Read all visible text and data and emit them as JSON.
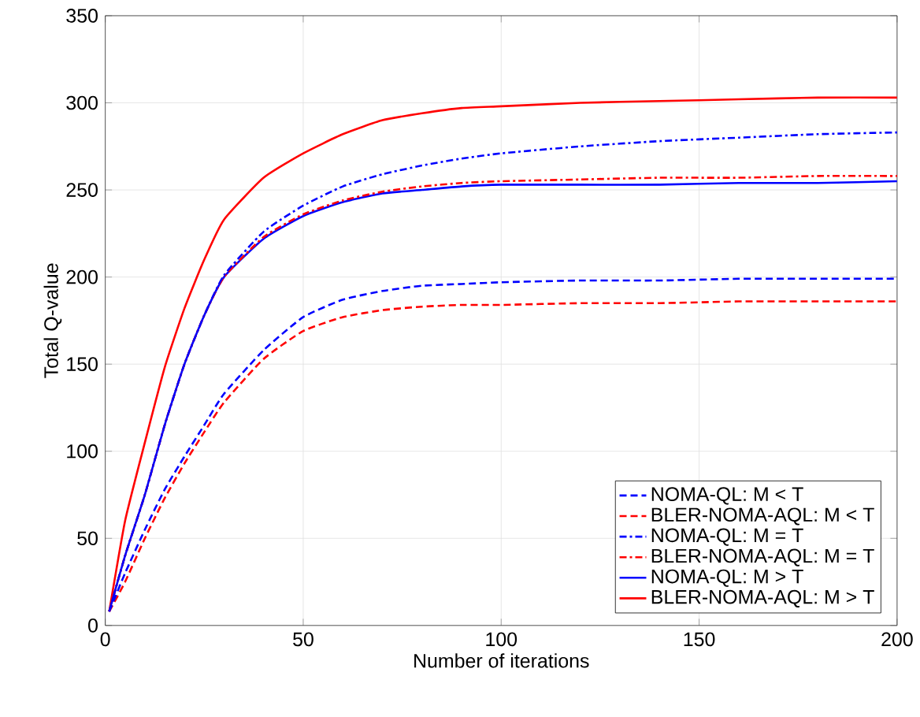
{
  "chart_data": {
    "type": "line",
    "xlabel": "Number of iterations",
    "ylabel": "Total Q-value",
    "x": [
      1,
      5,
      10,
      15,
      20,
      25,
      30,
      40,
      50,
      60,
      70,
      80,
      90,
      100,
      120,
      140,
      160,
      180,
      200
    ],
    "xlim": [
      0,
      200
    ],
    "xticks": [
      0,
      50,
      100,
      150,
      200
    ],
    "ylim": [
      0,
      350
    ],
    "yticks": [
      0,
      50,
      100,
      150,
      200,
      250,
      300,
      350
    ],
    "grid": true,
    "legend": "bottom right",
    "marker": "none",
    "series": [
      {
        "name": "NOMA-QL: M < T",
        "color": "#0000ff",
        "line_style": "dashed",
        "values": [
          8,
          30,
          55,
          78,
          97,
          115,
          133,
          158,
          177,
          187,
          192,
          195,
          196,
          197,
          198,
          198,
          199,
          199,
          199
        ]
      },
      {
        "name": "BLER-NOMA-AQL: M < T",
        "color": "#ff0000",
        "line_style": "dashed",
        "values": [
          8,
          25,
          50,
          73,
          93,
          111,
          128,
          153,
          169,
          177,
          181,
          183,
          184,
          184,
          185,
          185,
          186,
          186,
          186
        ]
      },
      {
        "name": "NOMA-QL: M = T",
        "color": "#0000ff",
        "line_style": "dashdot",
        "values": [
          8,
          40,
          75,
          115,
          150,
          178,
          201,
          226,
          241,
          252,
          259,
          264,
          268,
          271,
          275,
          278,
          280,
          282,
          283
        ]
      },
      {
        "name": "BLER-NOMA-AQL: M = T",
        "color": "#ff0000",
        "line_style": "dashdot",
        "values": [
          8,
          40,
          75,
          115,
          150,
          178,
          200,
          223,
          236,
          244,
          249,
          252,
          254,
          255,
          256,
          257,
          257,
          258,
          258
        ]
      },
      {
        "name": "NOMA-QL: M > T",
        "color": "#0000ff",
        "line_style": "solid",
        "values": [
          8,
          40,
          75,
          115,
          150,
          178,
          200,
          222,
          235,
          243,
          248,
          250,
          252,
          253,
          253,
          253,
          254,
          254,
          255
        ]
      },
      {
        "name": "BLER-NOMA-AQL: M > T",
        "color": "#ff0000",
        "line_style": "solid",
        "values": [
          8,
          60,
          105,
          148,
          182,
          210,
          233,
          257,
          271,
          282,
          290,
          294,
          297,
          298,
          300,
          301,
          302,
          303,
          303
        ]
      }
    ]
  }
}
